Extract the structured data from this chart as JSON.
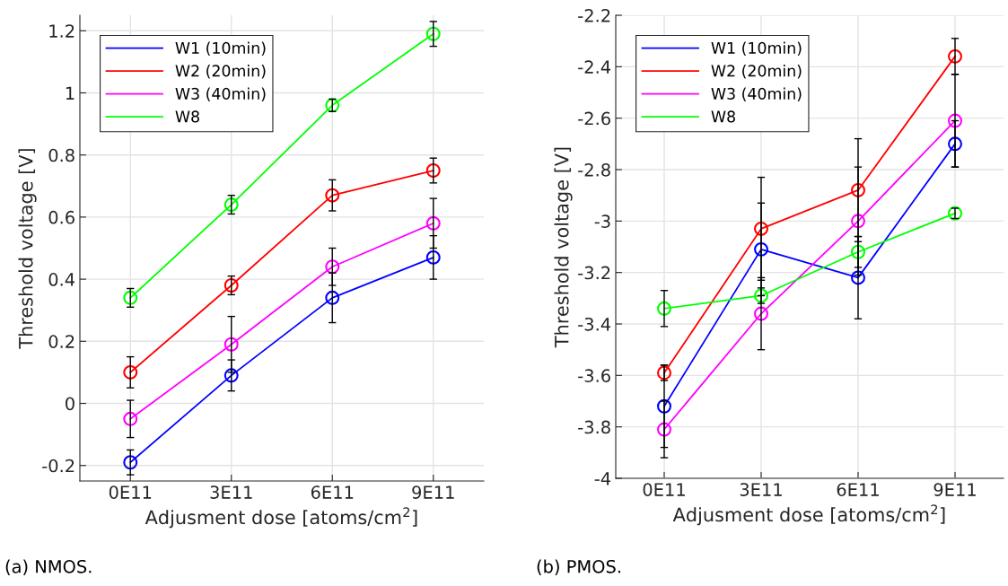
{
  "chart_data": [
    {
      "type": "line",
      "xlabel": "Adjusment dose [atoms/cm$^{2}$]",
      "ylabel": "Threshold voltage [V]",
      "categories": [
        "0E11",
        "3E11",
        "6E11",
        "9E11"
      ],
      "ylim": [
        -0.25,
        1.25
      ],
      "yticks": [
        -0.2,
        0,
        0.2,
        0.4,
        0.6,
        0.8,
        1,
        1.2
      ],
      "grid": true,
      "legend": "top left",
      "marker": "circle",
      "line_style": "solid",
      "annotations": [
        "(a) NMOS."
      ],
      "series": [
        {
          "name": "W1 (10min)",
          "color": "#0000ff",
          "values": [
            -0.19,
            0.09,
            0.34,
            0.47
          ],
          "errors": [
            0.04,
            0.05,
            0.08,
            0.07
          ]
        },
        {
          "name": "W2 (20min)",
          "color": "#ff0000",
          "values": [
            0.1,
            0.38,
            0.67,
            0.75
          ],
          "errors": [
            0.05,
            0.03,
            0.05,
            0.04
          ]
        },
        {
          "name": "W3 (40min)",
          "color": "#ff00ff",
          "values": [
            -0.05,
            0.19,
            0.44,
            0.58
          ],
          "errors": [
            0.06,
            0.09,
            0.06,
            0.08
          ]
        },
        {
          "name": "W8",
          "color": "#00ff00",
          "values": [
            0.34,
            0.64,
            0.96,
            1.19
          ],
          "errors": [
            0.03,
            0.03,
            0.02,
            0.04
          ]
        }
      ]
    },
    {
      "type": "line",
      "xlabel": "Adjusment dose [atoms/cm$^{2}$]",
      "ylabel": "Threshold voltage [V]",
      "categories": [
        "0E11",
        "3E11",
        "6E11",
        "9E11"
      ],
      "ylim": [
        -4,
        -2.2
      ],
      "yticks": [
        {
          "value": -4,
          "label": "-4"
        },
        {
          "value": -3.8,
          "label": "-3.8"
        },
        {
          "value": -3.6,
          "label": "-3.6"
        },
        {
          "value": -3.4,
          "label": "-3.4"
        },
        {
          "value": -3.2,
          "label": "-3.2"
        },
        {
          "value": -3,
          "label": "-3"
        },
        {
          "value": -2.8,
          "label": "-2.8"
        },
        {
          "value": -2.6,
          "label": "-2.6"
        },
        {
          "value": -2.4,
          "label": "-2.4"
        },
        {
          "value": -2.2,
          "label": "-2.2"
        }
      ],
      "grid": true,
      "legend": "top left",
      "marker": "circle",
      "line_style": "solid",
      "annotations": [
        "(b) PMOS."
      ],
      "series": [
        {
          "name": "W1 (10min)",
          "color": "#0000ff",
          "values": [
            -3.72,
            -3.11,
            -3.22,
            -2.7
          ],
          "errors": [
            0.16,
            0.18,
            0.16,
            0.09
          ]
        },
        {
          "name": "W2 (20min)",
          "color": "#ff0000",
          "values": [
            -3.59,
            -3.03,
            -2.88,
            -2.36
          ],
          "errors": [
            0.03,
            0.2,
            0.2,
            0.07
          ]
        },
        {
          "name": "W3 (40min)",
          "color": "#ff00ff",
          "values": [
            -3.81,
            -3.36,
            -3.0,
            -2.61
          ],
          "errors": [
            0.11,
            0.14,
            0.21,
            0.18
          ]
        },
        {
          "name": "W8",
          "color": "#00ff00",
          "values": [
            -3.34,
            -3.29,
            -3.12,
            -2.97
          ],
          "errors": [
            0.07,
            0.03,
            0.06,
            0.02
          ]
        }
      ]
    }
  ]
}
